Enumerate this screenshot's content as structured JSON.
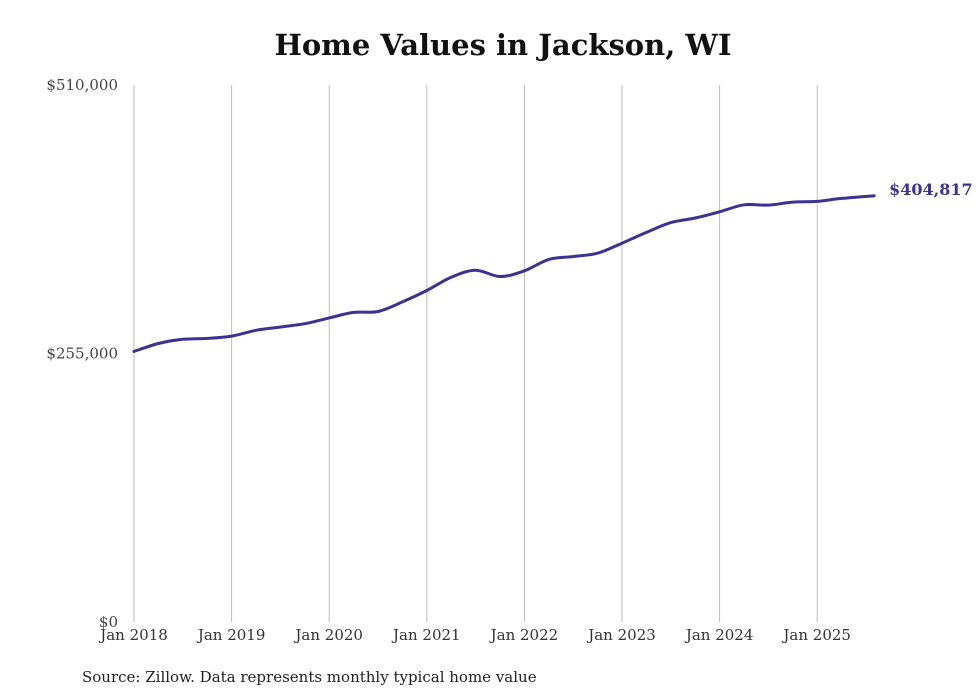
{
  "chart_data": {
    "type": "line",
    "title": "Home Values in Jackson, WI",
    "xlabel": "",
    "ylabel": "",
    "ylim": [
      0,
      510000
    ],
    "y_ticks": [
      0,
      255000,
      510000
    ],
    "y_tick_labels": [
      "$0",
      "$255,000",
      "$510,000"
    ],
    "x_ticks": [
      "2018-01",
      "2019-01",
      "2020-01",
      "2021-01",
      "2022-01",
      "2023-01",
      "2024-01",
      "2025-01"
    ],
    "x_tick_labels": [
      "Jan 2018",
      "Jan 2019",
      "Jan 2020",
      "Jan 2021",
      "Jan 2022",
      "Jan 2023",
      "Jan 2024",
      "Jan 2025"
    ],
    "xlim": [
      "2018-01",
      "2025-08"
    ],
    "grid": "vertical",
    "series": [
      {
        "color": "#3b3391",
        "x": [
          "2018-01",
          "2018-04",
          "2018-07",
          "2018-10",
          "2019-01",
          "2019-04",
          "2019-07",
          "2019-10",
          "2020-01",
          "2020-04",
          "2020-07",
          "2020-10",
          "2021-01",
          "2021-04",
          "2021-07",
          "2021-10",
          "2022-01",
          "2022-04",
          "2022-07",
          "2022-10",
          "2023-01",
          "2023-04",
          "2023-07",
          "2023-10",
          "2024-01",
          "2024-04",
          "2024-07",
          "2024-10",
          "2025-01",
          "2025-04",
          "2025-08"
        ],
        "values": [
          257000,
          264500,
          268500,
          269300,
          271500,
          277000,
          280200,
          283300,
          288800,
          294000,
          294900,
          304000,
          314800,
          327400,
          334100,
          328100,
          333500,
          344400,
          347100,
          350300,
          359800,
          370000,
          379300,
          383700,
          389600,
          396200,
          395900,
          398800,
          399500,
          402300,
          404817
        ],
        "end_label": "$404,817"
      }
    ]
  },
  "source_note": "Source: Zillow. Data represents monthly typical home value"
}
